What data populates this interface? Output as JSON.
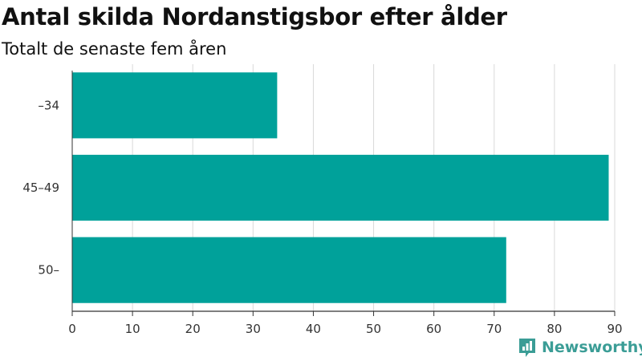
{
  "title": "Antal skilda Nordanstigsbor efter ålder",
  "subtitle": "Totalt de senaste fem åren",
  "brand": {
    "name": "Newsworthy",
    "color": "#3b9d96"
  },
  "colors": {
    "bar": "#00a19a",
    "grid": "#d9d9d9",
    "axis": "#333333"
  },
  "chart_data": {
    "type": "bar",
    "orientation": "horizontal",
    "categories": [
      "–34",
      "45–49",
      "50–"
    ],
    "values": [
      34,
      89,
      72
    ],
    "xlim": [
      0,
      90
    ],
    "xticks": [
      0,
      10,
      20,
      30,
      40,
      50,
      60,
      70,
      80,
      90
    ],
    "grid": true
  }
}
